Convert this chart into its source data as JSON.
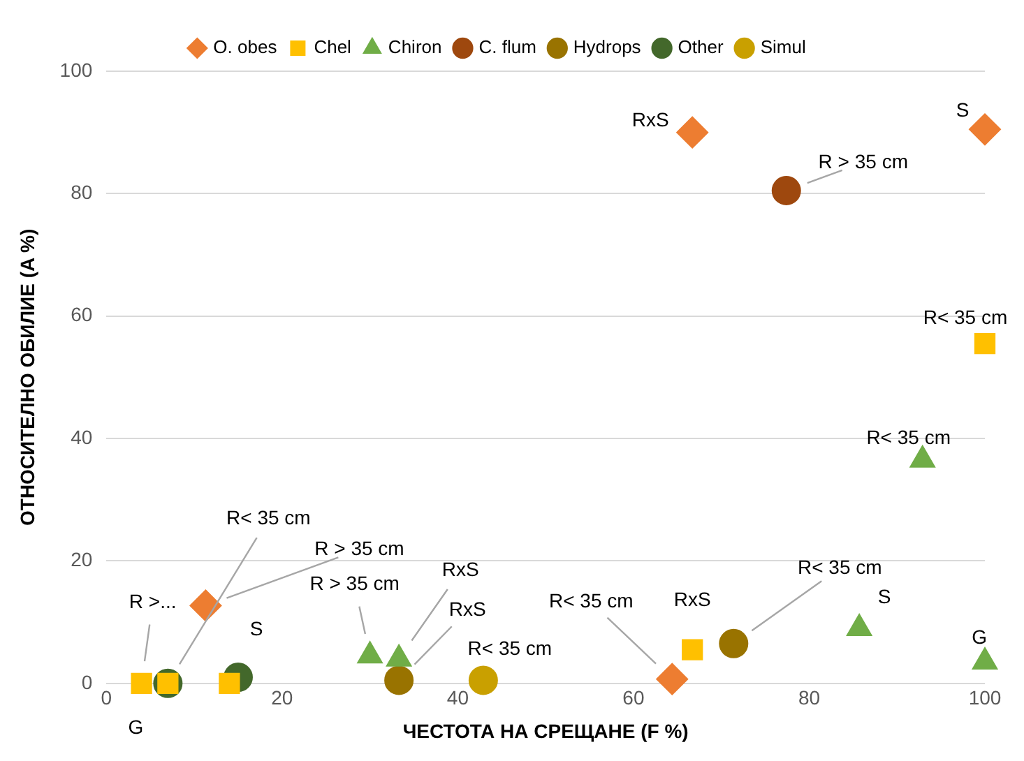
{
  "chart_data": {
    "type": "scatter",
    "xlabel": "ЧЕСТОТА НА СРЕЩАНЕ (F %)",
    "ylabel": "ОТНОСИТЕЛНО ОБИЛИЕ (A %)",
    "xlim": [
      0,
      100
    ],
    "xticks": [
      0,
      20,
      40,
      60,
      80,
      100
    ],
    "ylim": [
      0,
      100
    ],
    "yticks": [
      0,
      20,
      40,
      60,
      80,
      100
    ],
    "grid": "y",
    "legend": "top",
    "series": [
      {
        "name": "O. obes",
        "color": "#ed7d31",
        "marker": "diamond",
        "x": [
          11.3,
          66.7,
          100,
          64.4
        ],
        "values": [
          12.7,
          90,
          90.5,
          0.7
        ],
        "value_labels": [
          "R > 35 cm",
          "RxS",
          "S",
          "R< 35 cm"
        ]
      },
      {
        "name": "Chel",
        "color": "#ffc000",
        "marker": "square",
        "x": [
          4,
          7,
          14,
          66.7,
          100
        ],
        "values": [
          0,
          0,
          0,
          5.5,
          55.5
        ],
        "value_labels": [
          "R >...",
          "R< 35 cm",
          null,
          "RxS",
          "R< 35 cm"
        ]
      },
      {
        "name": "Chiron",
        "color": "#70ad47",
        "marker": "triangle",
        "x": [
          30,
          33.3,
          85.7,
          92.9,
          100
        ],
        "values": [
          4.5,
          4,
          9,
          36.5,
          3.5
        ],
        "value_labels": [
          "R > 35 cm",
          "RxS",
          "S",
          "R< 35 cm",
          "G"
        ]
      },
      {
        "name": "C. flum",
        "color": "#9e480e",
        "marker": "circle",
        "x": [
          77.4
        ],
        "values": [
          80.5
        ],
        "value_labels": [
          "R > 35 cm"
        ]
      },
      {
        "name": "Hydrops",
        "color": "#997300",
        "marker": "circle",
        "x": [
          33.3,
          71.4
        ],
        "values": [
          0.5,
          6.5
        ],
        "value_labels": [
          "RxS",
          "R< 35 cm"
        ]
      },
      {
        "name": "Other",
        "color": "#43682b",
        "marker": "circle",
        "x": [
          7,
          15
        ],
        "values": [
          0,
          1
        ],
        "value_labels": [
          "G",
          "S"
        ]
      },
      {
        "name": "Simul",
        "color": "#c9a000",
        "marker": "circle",
        "x": [
          42.9
        ],
        "values": [
          0.5
        ],
        "value_labels": [
          "R< 35 cm"
        ]
      }
    ]
  }
}
